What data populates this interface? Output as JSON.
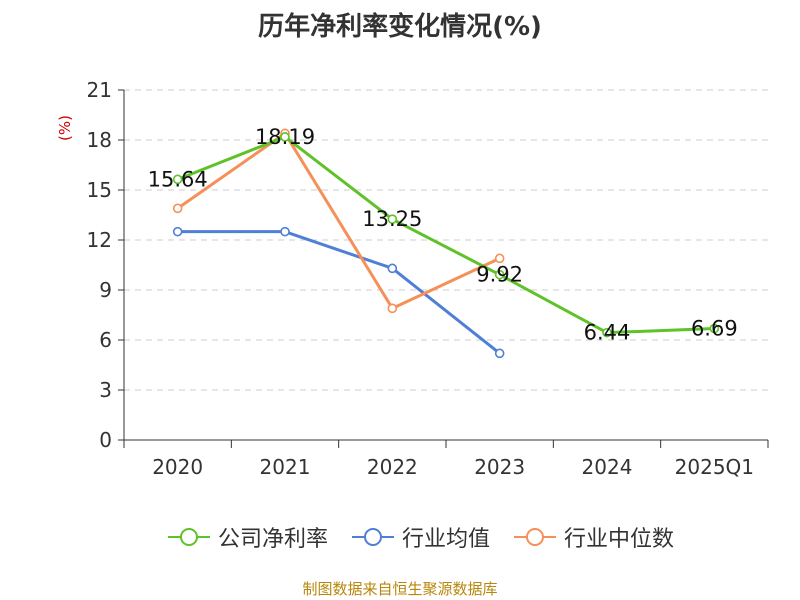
{
  "colors": {
    "company": "#5ec228",
    "industry_avg": "#4f7fd6",
    "industry_median": "#f59058",
    "ylabel": "#cc0000",
    "footer": "#b8860b"
  },
  "legend": [
    {
      "label": "公司净利率",
      "icon": "circle-line-icon"
    },
    {
      "label": "行业均值",
      "icon": "circle-line-icon"
    },
    {
      "label": "行业中位数",
      "icon": "circle-line-icon"
    }
  ],
  "footer": "制图数据来自恒生聚源数据库",
  "chart_data": {
    "type": "line",
    "title": "历年净利率变化情况(%)",
    "xlabel": "",
    "ylabel": "(%)",
    "ylim": [
      0,
      21
    ],
    "yticks": [
      0,
      3,
      6,
      9,
      12,
      15,
      18,
      21
    ],
    "categories": [
      "2020",
      "2021",
      "2022",
      "2023",
      "2024",
      "2025Q1"
    ],
    "grid": true,
    "legend_position": "bottom",
    "series": [
      {
        "name": "公司净利率",
        "values": [
          15.64,
          18.19,
          13.25,
          9.92,
          6.44,
          6.69
        ],
        "labels": [
          "15.64",
          "18.19",
          "13.25",
          "9.92",
          "6.44",
          "6.69"
        ]
      },
      {
        "name": "行业均值",
        "values": [
          12.5,
          12.5,
          10.3,
          5.2,
          null,
          null
        ]
      },
      {
        "name": "行业中位数",
        "values": [
          13.9,
          18.4,
          7.9,
          10.9,
          null,
          null
        ]
      }
    ]
  }
}
